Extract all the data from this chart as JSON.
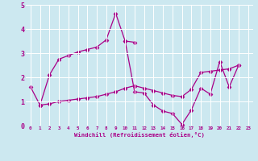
{
  "xlabel": "Windchill (Refroidissement éolien,°C)",
  "bg_color": "#cce8f0",
  "line_color": "#aa0088",
  "marker": "D",
  "markersize": 2.5,
  "linewidth": 0.9,
  "xlim": [
    -0.5,
    23.5
  ],
  "ylim": [
    0,
    5
  ],
  "xticks": [
    0,
    1,
    2,
    3,
    4,
    5,
    6,
    7,
    8,
    9,
    10,
    11,
    12,
    13,
    14,
    15,
    16,
    17,
    18,
    19,
    20,
    21,
    22,
    23
  ],
  "yticks": [
    0,
    1,
    2,
    3,
    4,
    5
  ],
  "grid_color": "#ffffff",
  "lines": [
    {
      "x": [
        0,
        1,
        2,
        3,
        4,
        5,
        6,
        7,
        8,
        9,
        10,
        11
      ],
      "y": [
        1.6,
        0.85,
        2.1,
        2.75,
        2.9,
        3.05,
        3.15,
        3.25,
        3.55,
        4.65,
        3.5,
        3.45
      ]
    },
    {
      "x": [
        10,
        11,
        12,
        13,
        14,
        15,
        16,
        17,
        18,
        19,
        20,
        21,
        22
      ],
      "y": [
        3.5,
        1.4,
        1.35,
        0.85,
        0.6,
        0.5,
        0.05,
        0.65,
        1.55,
        1.3,
        2.65,
        1.6,
        2.5
      ]
    },
    {
      "x": [
        1,
        2,
        3,
        4,
        5,
        6,
        7,
        8,
        9,
        10,
        11
      ],
      "y": [
        0.85,
        0.9,
        1.0,
        1.05,
        1.1,
        1.15,
        1.2,
        1.3,
        1.4,
        1.55,
        1.65
      ]
    },
    {
      "x": [
        11,
        12,
        13,
        14,
        15,
        16,
        17,
        18,
        19,
        20,
        21,
        22
      ],
      "y": [
        1.65,
        1.55,
        1.45,
        1.35,
        1.25,
        1.2,
        1.5,
        2.2,
        2.25,
        2.3,
        2.35,
        2.5
      ]
    }
  ]
}
